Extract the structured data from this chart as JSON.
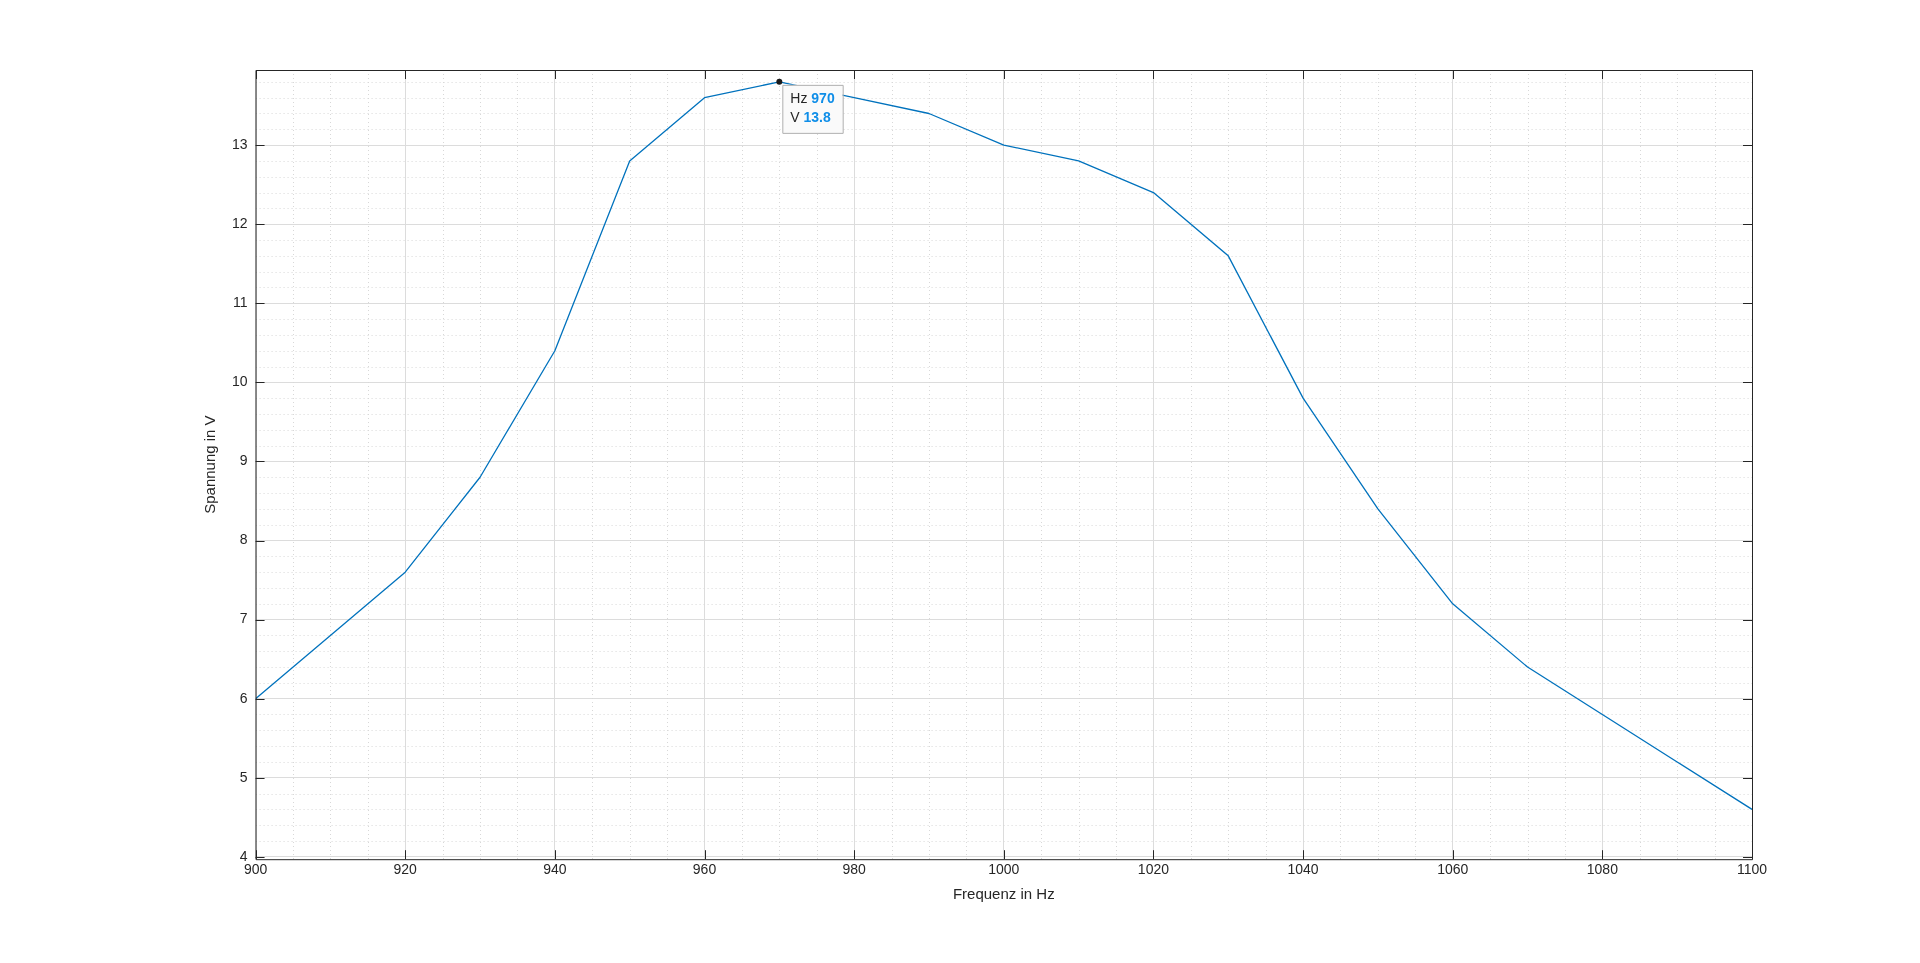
{
  "chart_data": {
    "type": "line",
    "xlabel": "Frequenz in Hz",
    "ylabel": "Spannung in V",
    "x": [
      900,
      910,
      920,
      930,
      940,
      950,
      960,
      970,
      980,
      990,
      1000,
      1010,
      1020,
      1030,
      1040,
      1050,
      1060,
      1070,
      1080,
      1090,
      1100
    ],
    "series": [
      {
        "color": "#0072bd",
        "values": [
          6,
          6.8,
          7.6,
          8.8,
          10.4,
          12.8,
          13.6,
          13.8,
          13.6,
          13.4,
          13,
          12.8,
          12.4,
          11.6,
          9.8,
          8.4,
          7.2,
          6.4,
          5.8,
          5.2,
          4.6
        ]
      }
    ],
    "xlim": [
      900,
      1100
    ],
    "xticks": [
      900,
      920,
      940,
      960,
      980,
      1000,
      1020,
      1040,
      1060,
      1080,
      1100
    ],
    "ylim": [
      3.97,
      13.95
    ],
    "yticks": [
      4,
      5,
      6,
      7,
      8,
      9,
      10,
      11,
      12,
      13
    ],
    "grid": true,
    "marker": "none",
    "line_style": "solid",
    "legend": false,
    "annotations": [
      {
        "text": "Hz 970\nV 13.8",
        "x": 970,
        "y": 13.8
      }
    ]
  }
}
